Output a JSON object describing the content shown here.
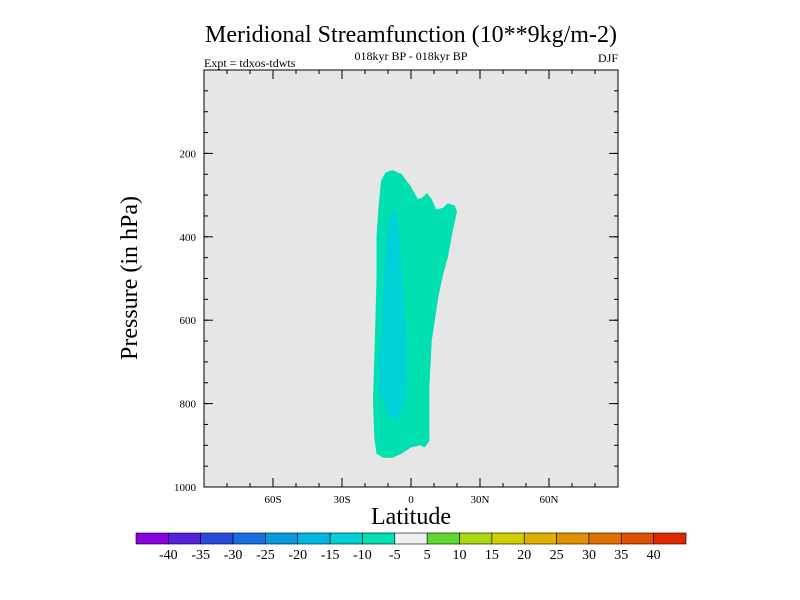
{
  "chart_data": {
    "type": "contour",
    "title": "Meridional Streamfunction (10**9kg/m-2)",
    "subtitle_center": "018kyr BP - 018kyr BP",
    "subtitle_left": "Expt = tdxos-tdwts",
    "subtitle_right": "DJF",
    "xlabel": "Latitude",
    "ylabel": "Pressure (in hPa)",
    "xlim": [
      -90,
      90
    ],
    "ylim": [
      1000,
      0
    ],
    "x_ticks": [
      {
        "value": -60,
        "label": "60S"
      },
      {
        "value": -30,
        "label": "30S"
      },
      {
        "value": 0,
        "label": "0"
      },
      {
        "value": 30,
        "label": "30N"
      },
      {
        "value": 60,
        "label": "60N"
      }
    ],
    "y_ticks": [
      {
        "value": 200,
        "label": "200"
      },
      {
        "value": 400,
        "label": "400"
      },
      {
        "value": 600,
        "label": "600"
      },
      {
        "value": 800,
        "label": "800"
      },
      {
        "value": 1000,
        "label": "1000"
      }
    ],
    "background_color": "#e6e6e6",
    "contour_regions": [
      {
        "level": "-10 to -5",
        "color": "#00e0b0",
        "points": [
          [
            -15,
            920
          ],
          [
            -12,
            930
          ],
          [
            -8,
            930
          ],
          [
            -4,
            920
          ],
          [
            0,
            905
          ],
          [
            4,
            900
          ],
          [
            6,
            905
          ],
          [
            8,
            890
          ],
          [
            8,
            840
          ],
          [
            8,
            760
          ],
          [
            9,
            650
          ],
          [
            12,
            540
          ],
          [
            14,
            490
          ],
          [
            16,
            450
          ],
          [
            18,
            390
          ],
          [
            20,
            340
          ],
          [
            19,
            325
          ],
          [
            16,
            320
          ],
          [
            14,
            330
          ],
          [
            11,
            335
          ],
          [
            9,
            310
          ],
          [
            7,
            295
          ],
          [
            5,
            305
          ],
          [
            3,
            310
          ],
          [
            0,
            280
          ],
          [
            -4,
            250
          ],
          [
            -8,
            240
          ],
          [
            -11,
            245
          ],
          [
            -13,
            265
          ],
          [
            -14,
            320
          ],
          [
            -15,
            400
          ],
          [
            -15,
            500
          ],
          [
            -15.5,
            600
          ],
          [
            -16,
            700
          ],
          [
            -16.5,
            790
          ],
          [
            -16,
            880
          ]
        ]
      },
      {
        "level": "-15 to -10",
        "color": "#00d0d8",
        "points": [
          [
            -12,
            520
          ],
          [
            -13,
            620
          ],
          [
            -14,
            700
          ],
          [
            -14,
            770
          ],
          [
            -12,
            800
          ],
          [
            -9,
            830
          ],
          [
            -6,
            840
          ],
          [
            -3,
            800
          ],
          [
            -2,
            740
          ],
          [
            -2,
            650
          ],
          [
            -3,
            560
          ],
          [
            -4,
            480
          ],
          [
            -5,
            400
          ],
          [
            -6,
            350
          ],
          [
            -8,
            330
          ],
          [
            -10,
            370
          ],
          [
            -11,
            440
          ]
        ]
      }
    ],
    "colorbar": {
      "colors": [
        "#8800e0",
        "#5520e0",
        "#2848e0",
        "#1870e0",
        "#0898e0",
        "#00b8e0",
        "#00d0d8",
        "#00e0b0",
        "#f0f0f0",
        "#60d830",
        "#a8d810",
        "#d0d000",
        "#e0b000",
        "#e09000",
        "#e07000",
        "#e05000",
        "#e02800"
      ],
      "labels": [
        "-40",
        "-35",
        "-30",
        "-25",
        "-20",
        "-15",
        "-10",
        "-5",
        "5",
        "10",
        "15",
        "20",
        "25",
        "30",
        "35",
        "40"
      ]
    }
  }
}
